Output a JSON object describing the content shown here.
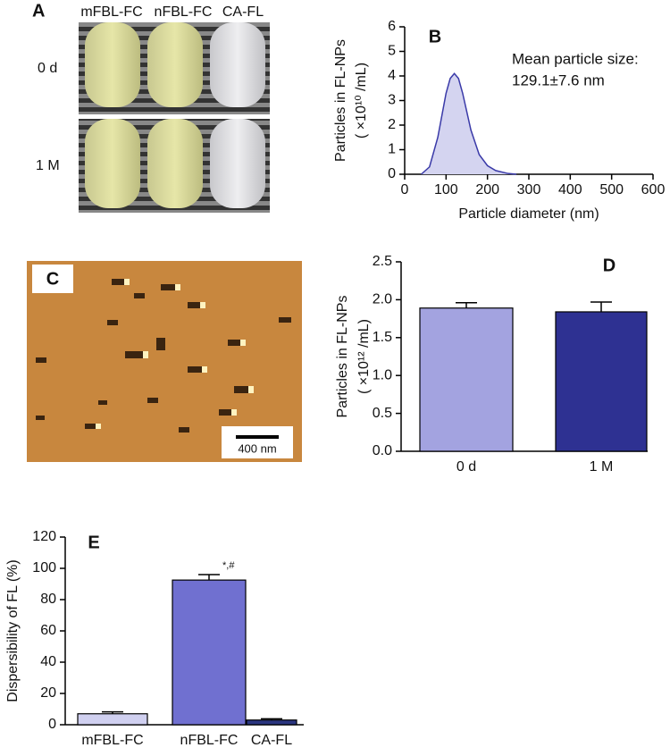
{
  "panel_a": {
    "label": "A",
    "columns": [
      "mFBL-FC",
      "nFBL-FC",
      "CA-FL"
    ],
    "rows": [
      "0 d",
      "1 M"
    ]
  },
  "panel_c": {
    "label": "C",
    "scale_bar": "400 nm"
  },
  "chart_data": [
    {
      "type": "area",
      "label": "B",
      "ylabel": "Particles in FL-NPs",
      "ylabel_unit": "( ×10¹⁰ /mL)",
      "xlabel": "Particle diameter (nm)",
      "annotation": [
        "Mean particle size:",
        "129.1±7.6 nm"
      ],
      "x": [
        40,
        60,
        80,
        100,
        110,
        120,
        130,
        140,
        160,
        180,
        200,
        220,
        250,
        270
      ],
      "values": [
        0,
        0.3,
        1.5,
        3.3,
        3.9,
        4.1,
        3.9,
        3.3,
        1.8,
        0.8,
        0.35,
        0.15,
        0.03,
        0
      ],
      "color": "#3a3aa8",
      "fill": "#d4d4f0",
      "xlim": [
        0,
        600
      ],
      "xticks": [
        0,
        100,
        200,
        300,
        400,
        500,
        600
      ],
      "ylim": [
        0,
        6
      ],
      "yticks": [
        0,
        1,
        2,
        3,
        4,
        5,
        6
      ],
      "grid": false
    },
    {
      "type": "bar",
      "label": "D",
      "ylabel": "Particles in FL-NPs",
      "ylabel_unit": "( ×10¹² /mL)",
      "categories": [
        "0 d",
        "1 M"
      ],
      "values": [
        1.89,
        1.84
      ],
      "errors": [
        0.07,
        0.13
      ],
      "colors": [
        "#a3a3e0",
        "#2e3192"
      ],
      "ylim": [
        0,
        2.5
      ],
      "yticks": [
        {
          "value": 0,
          "label": "0.0"
        },
        0.5,
        {
          "value": 1,
          "label": "1.0"
        },
        1.5,
        {
          "value": 2,
          "label": "2.0"
        },
        2.5
      ],
      "grid": false
    },
    {
      "type": "bar",
      "label": "E",
      "ylabel": "Dispersibility of FL (%)",
      "categories": [
        "mFBL-FC",
        "nFBL-FC",
        "CA-FL"
      ],
      "values": [
        7,
        92.5,
        3
      ],
      "errors": [
        1.2,
        3.5,
        0.8
      ],
      "colors": [
        "#d0d0f0",
        "#7070d0",
        "#2a3580"
      ],
      "annotation": [
        "*,#"
      ],
      "ylim": [
        0,
        120
      ],
      "yticks": [
        0,
        20,
        40,
        60,
        80,
        100,
        120
      ],
      "grid": false
    }
  ]
}
